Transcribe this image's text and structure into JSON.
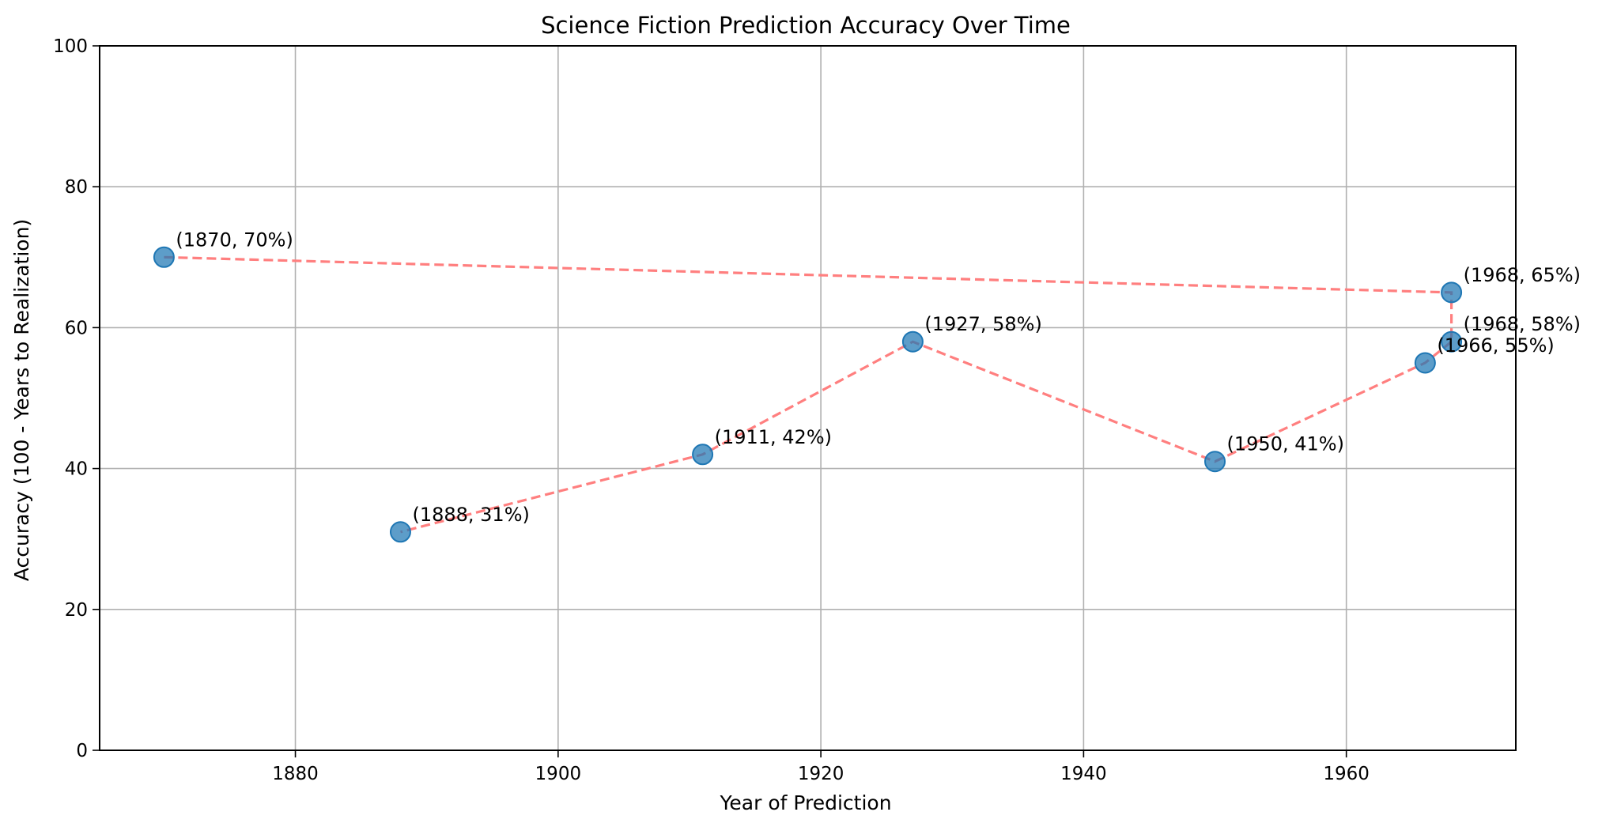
{
  "chart_data": {
    "type": "scatter",
    "title": "Science Fiction Prediction Accuracy Over Time",
    "xlabel": "Year of Prediction",
    "ylabel": "Accuracy (100 - Years to Realization)",
    "xlim": [
      1865.1,
      1972.9
    ],
    "ylim": [
      0,
      100
    ],
    "x_ticks": [
      1880,
      1900,
      1920,
      1940,
      1960
    ],
    "y_ticks": [
      0,
      20,
      40,
      60,
      80,
      100
    ],
    "grid": true,
    "points": [
      {
        "x": 1870,
        "y": 70,
        "label": "(1870, 70%)"
      },
      {
        "x": 1968,
        "y": 65,
        "label": "(1968, 65%)"
      },
      {
        "x": 1968,
        "y": 58,
        "label": "(1968, 58%)"
      },
      {
        "x": 1966,
        "y": 55,
        "label": "(1966, 55%)"
      },
      {
        "x": 1950,
        "y": 41,
        "label": "(1950, 41%)"
      },
      {
        "x": 1927,
        "y": 58,
        "label": "(1927, 58%)"
      },
      {
        "x": 1911,
        "y": 42,
        "label": "(1911, 42%)"
      },
      {
        "x": 1888,
        "y": 31,
        "label": "(1888, 31%)"
      }
    ],
    "colors": {
      "marker": "#1f77b4",
      "line": "#ff7f7f",
      "grid": "#b0b0b0"
    },
    "line_style": "dashed"
  }
}
